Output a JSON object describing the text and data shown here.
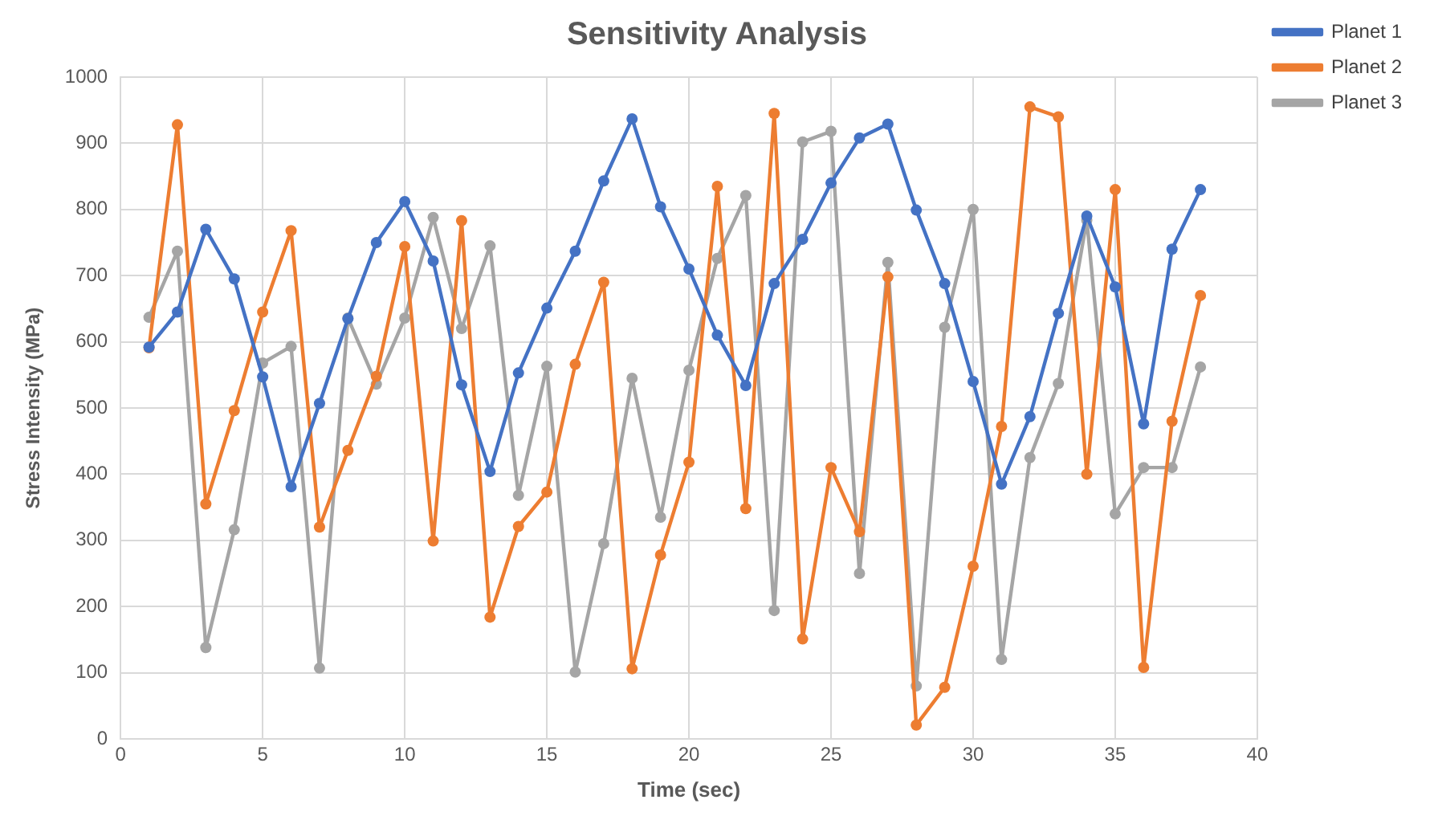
{
  "chart_data": {
    "type": "line",
    "title": "Sensitivity Analysis",
    "xlabel": "Time (sec)",
    "ylabel": "Stress Intensity (MPa)",
    "x": [
      1,
      2,
      3,
      4,
      5,
      6,
      7,
      8,
      9,
      10,
      11,
      12,
      13,
      14,
      15,
      16,
      17,
      18,
      19,
      20,
      21,
      22,
      23,
      24,
      25,
      26,
      27,
      28,
      29,
      30,
      31,
      32,
      33,
      34,
      35,
      36,
      37,
      38
    ],
    "series": [
      {
        "name": "Planet 1",
        "color": "#4472c4",
        "values": [
          592,
          645,
          770,
          695,
          547,
          381,
          507,
          635,
          750,
          812,
          722,
          535,
          404,
          553,
          651,
          737,
          843,
          937,
          804,
          710,
          610,
          534,
          688,
          755,
          840,
          908,
          929,
          799,
          688,
          540,
          385,
          487,
          643,
          790,
          683,
          476,
          740,
          830
        ]
      },
      {
        "name": "Planet 2",
        "color": "#ed7d31",
        "values": [
          591,
          928,
          355,
          496,
          645,
          768,
          320,
          436,
          548,
          744,
          299,
          783,
          184,
          321,
          373,
          566,
          690,
          106,
          278,
          418,
          835,
          348,
          945,
          151,
          410,
          313,
          698,
          21,
          78,
          261,
          472,
          955,
          940,
          400,
          830,
          108,
          480,
          670
        ]
      },
      {
        "name": "Planet 3",
        "color": "#a5a5a5",
        "values": [
          637,
          737,
          138,
          316,
          568,
          593,
          107,
          636,
          536,
          636,
          788,
          620,
          745,
          368,
          563,
          101,
          295,
          545,
          335,
          557,
          726,
          821,
          194,
          902,
          918,
          250,
          720,
          80,
          622,
          800,
          120,
          425,
          537,
          784,
          340,
          410,
          410,
          562
        ]
      }
    ],
    "xlim": [
      0,
      40
    ],
    "xticks": [
      0,
      5,
      10,
      15,
      20,
      25,
      30,
      35,
      40
    ],
    "ylim": [
      0,
      1000
    ],
    "yticks": [
      0,
      100,
      200,
      300,
      400,
      500,
      600,
      700,
      800,
      900,
      1000
    ],
    "grid": true,
    "legend": "right",
    "marker": "circle",
    "line_style": "solid"
  }
}
